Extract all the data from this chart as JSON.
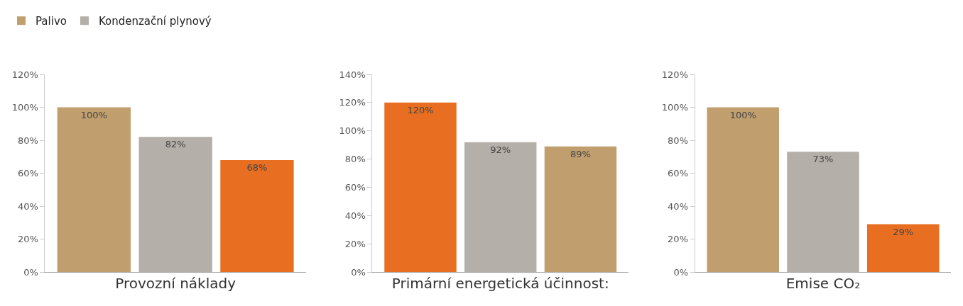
{
  "chart_data": [
    {
      "type": "bar",
      "xlabel": "Provozní náklady",
      "categories": [
        null,
        null,
        null
      ],
      "legend": "top left",
      "tick_labels": "y",
      "grid": false,
      "ylim": [
        0,
        120
      ],
      "yticks": [
        {
          "value": 0,
          "label": "0%"
        },
        {
          "value": 20,
          "label": "20%"
        },
        {
          "value": 40,
          "label": "40%"
        },
        {
          "value": 60,
          "label": "60%"
        },
        {
          "value": 80,
          "label": "80%"
        },
        {
          "value": 100,
          "label": "100%"
        },
        {
          "value": 120,
          "label": "120%"
        }
      ],
      "series": [
        {
          "name": "Palivo",
          "color": "#c19e6d",
          "values": [
            100,
            null,
            null
          ],
          "value_labels": [
            "100%",
            null,
            null
          ]
        },
        {
          "name": "Kondenzační plynový",
          "color": "#b4afa8",
          "values": [
            null,
            82,
            null
          ],
          "value_labels": [
            null,
            "82%",
            null
          ]
        },
        {
          "color": "#e86f21",
          "values": [
            null,
            null,
            68
          ],
          "value_labels": [
            null,
            null,
            "68%"
          ]
        }
      ]
    },
    {
      "type": "bar",
      "xlabel": "Primární energetická účinnost:",
      "categories": [
        null,
        null,
        null
      ],
      "tick_labels": "y",
      "grid": false,
      "ylim": [
        0,
        140
      ],
      "yticks": [
        {
          "value": 0,
          "label": "0%"
        },
        {
          "value": 20,
          "label": "20%"
        },
        {
          "value": 40,
          "label": "40%"
        },
        {
          "value": 60,
          "label": "60%"
        },
        {
          "value": 80,
          "label": "80%"
        },
        {
          "value": 100,
          "label": "100%"
        },
        {
          "value": 120,
          "label": "120%"
        },
        {
          "value": 140,
          "label": "140%"
        }
      ],
      "series": [
        {
          "color": "#e86f21",
          "values": [
            120,
            null,
            null
          ],
          "value_labels": [
            "120%",
            null,
            null
          ]
        },
        {
          "color": "#b4afa8",
          "values": [
            null,
            92,
            null
          ],
          "value_labels": [
            null,
            "92%",
            null
          ]
        },
        {
          "color": "#c19e6d",
          "values": [
            null,
            null,
            89
          ],
          "value_labels": [
            null,
            null,
            "89%"
          ]
        }
      ]
    },
    {
      "type": "bar",
      "xlabel": "Emise CO₂",
      "categories": [
        null,
        null,
        null
      ],
      "tick_labels": "y",
      "grid": false,
      "ylim": [
        0,
        120
      ],
      "yticks": [
        {
          "value": 0,
          "label": "0%"
        },
        {
          "value": 20,
          "label": "20%"
        },
        {
          "value": 40,
          "label": "40%"
        },
        {
          "value": 60,
          "label": "60%"
        },
        {
          "value": 80,
          "label": "80%"
        },
        {
          "value": 100,
          "label": "100%"
        },
        {
          "value": 120,
          "label": "120%"
        }
      ],
      "series": [
        {
          "color": "#c19e6d",
          "values": [
            100,
            null,
            null
          ],
          "value_labels": [
            "100%",
            null,
            null
          ]
        },
        {
          "color": "#b4afa8",
          "values": [
            null,
            73,
            null
          ],
          "value_labels": [
            null,
            "73%",
            null
          ]
        },
        {
          "color": "#e86f21",
          "values": [
            null,
            null,
            29
          ],
          "value_labels": [
            null,
            null,
            "29%"
          ]
        }
      ]
    }
  ]
}
